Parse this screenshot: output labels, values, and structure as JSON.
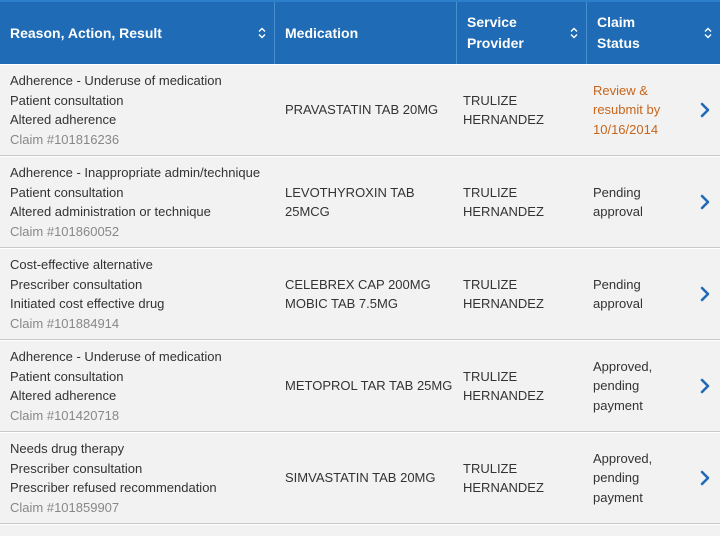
{
  "header": {
    "col1": "Reason, Action, Result",
    "col2": "Medication",
    "col3_line1": "Service",
    "col3_line2": "Provider",
    "col4_line1": "Claim",
    "col4_line2": "Status"
  },
  "colors": {
    "header_bg": "#1f6bb5",
    "row_bg": "#f2f2f2",
    "chevron": "#1f6bb5",
    "status_review": "#c8651b"
  },
  "rows": [
    {
      "reason": "Adherence - Underuse of medication",
      "action": "Patient consultation",
      "result": "Altered adherence",
      "claim": "Claim #101816236",
      "medication": [
        "PRAVASTATIN TAB 20MG",
        ""
      ],
      "provider": [
        "TRULIZE",
        "HERNANDEZ"
      ],
      "status": [
        "Review &",
        "resubmit by",
        "10/16/2014"
      ],
      "status_type": "review"
    },
    {
      "reason": "Adherence - Inappropriate admin/technique",
      "action": "Patient consultation",
      "result": "Altered administration or technique",
      "claim": "Claim #101860052",
      "medication": [
        "LEVOTHYROXIN TAB 25MCG",
        ""
      ],
      "provider": [
        "TRULIZE",
        "HERNANDEZ"
      ],
      "status": [
        "Pending",
        "approval",
        ""
      ],
      "status_type": "pending"
    },
    {
      "reason": "Cost-effective alternative",
      "action": "Prescriber consultation",
      "result": "Initiated cost effective drug",
      "claim": "Claim #101884914",
      "medication": [
        "CELEBREX CAP 200MG",
        "MOBIC TAB 7.5MG"
      ],
      "provider": [
        "TRULIZE",
        "HERNANDEZ"
      ],
      "status": [
        "Pending",
        "approval",
        ""
      ],
      "status_type": "pending"
    },
    {
      "reason": "Adherence - Underuse of medication",
      "action": "Patient consultation",
      "result": "Altered adherence",
      "claim": "Claim #101420718",
      "medication": [
        "METOPROL TAR TAB 25MG",
        ""
      ],
      "provider": [
        "TRULIZE",
        "HERNANDEZ"
      ],
      "status": [
        "Approved,",
        "pending",
        "payment"
      ],
      "status_type": "pending"
    },
    {
      "reason": "Needs drug therapy",
      "action": "Prescriber consultation",
      "result": "Prescriber refused recommendation",
      "claim": "Claim #101859907",
      "medication": [
        "SIMVASTATIN TAB 20MG",
        ""
      ],
      "provider": [
        "TRULIZE",
        "HERNANDEZ"
      ],
      "status": [
        "Approved,",
        "pending",
        "payment"
      ],
      "status_type": "pending"
    }
  ],
  "icons": {
    "sort": "sort-icon",
    "row_link": "chevron-right-icon"
  }
}
